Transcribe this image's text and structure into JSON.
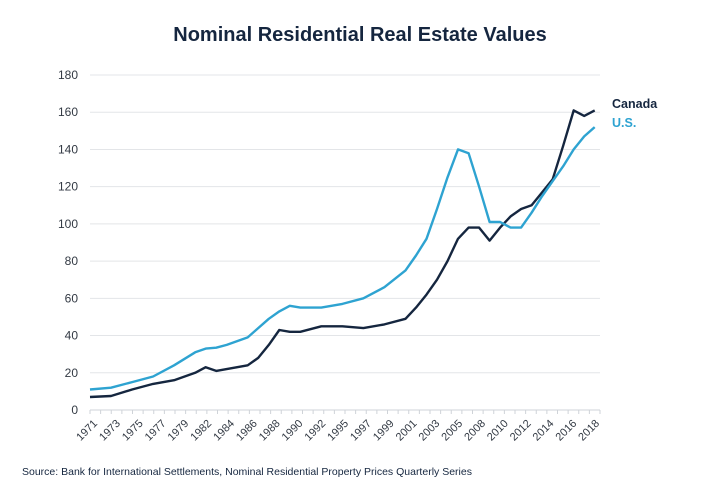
{
  "chart_data": {
    "type": "line",
    "title": "Nominal Residential Real Estate Values",
    "xlabel": "",
    "ylabel": "",
    "ylim": [
      0,
      180
    ],
    "xlim": [
      1970,
      2018.5
    ],
    "yticks": [
      0,
      20,
      40,
      60,
      80,
      100,
      120,
      140,
      160,
      180
    ],
    "xtick_labels": [
      "1971",
      "1973",
      "1975",
      "1977",
      "1979",
      "1982",
      "1984",
      "1986",
      "1988",
      "1990",
      "1992",
      "1995",
      "1997",
      "1999",
      "2001",
      "2003",
      "2005",
      "2008",
      "2010",
      "2012",
      "2014",
      "2016",
      "2018"
    ],
    "grid": "horizontal",
    "legend_position": "right, at line ends",
    "x": [
      1970,
      1972,
      1974,
      1976,
      1978,
      1980,
      1981,
      1982,
      1983,
      1985,
      1986,
      1987,
      1988,
      1989,
      1990,
      1992,
      1994,
      1996,
      1998,
      2000,
      2001,
      2002,
      2003,
      2004,
      2005,
      2006,
      2007,
      2008,
      2009,
      2010,
      2011,
      2012,
      2013,
      2014,
      2015,
      2016,
      2017,
      2018
    ],
    "series": [
      {
        "name": "Canada",
        "color": "#15263f",
        "values": [
          7,
          7.5,
          11,
          14,
          16,
          20,
          23,
          21,
          22,
          24,
          28,
          35,
          43,
          42,
          42,
          45,
          45,
          44,
          46,
          49,
          55,
          62,
          70,
          80,
          92,
          98,
          98,
          91,
          98,
          104,
          108,
          110,
          117,
          124,
          142,
          161,
          158,
          161
        ]
      },
      {
        "name": "U.S.",
        "color": "#2ea3d1",
        "values": [
          11,
          12,
          15,
          18,
          24,
          31,
          33,
          33.5,
          35,
          39,
          44,
          49,
          53,
          56,
          55,
          55,
          57,
          60,
          66,
          75,
          83,
          92,
          108,
          125,
          140,
          138,
          120,
          101,
          101,
          98,
          98,
          106,
          115,
          123,
          131,
          140,
          147,
          152
        ]
      }
    ],
    "source": "Source: Bank for International Settlements, Nominal Residential Property Prices Quarterly Series"
  }
}
